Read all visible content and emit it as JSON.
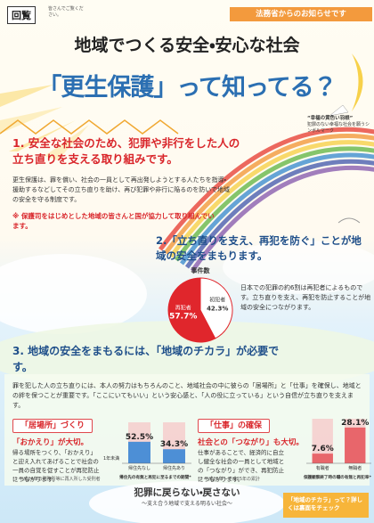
{
  "header": {
    "circular": "回覧",
    "circular_note": "皆さんでご覧ください。",
    "notice": "法務省からのお知らせです",
    "title": "地域でつくる安全・安心な社会",
    "subtitle": "「更生保護」って知ってる？",
    "symbol_name": "“幸福の黄色い羽根”",
    "symbol_desc": "犯罪のない幸福な社会を願うシンボルマーク"
  },
  "section1": {
    "heading": "1. 安全な社会のため、犯罪や非行をした人の立ち直りを支える取り組みです。",
    "body": "更生保護は、罪を償い、社会の一員として再出発しようとする人たちを指導・援助するなどしてその立ち直りを助け、再び犯罪や非行に陥るのを防いで地域の安全を守る制度です。",
    "note": "※ 保護司をはじめとした地域の皆さんと国が協力して取り組んでいます。"
  },
  "section2": {
    "heading": "2.「立ち直りを支え、再犯を防ぐ」ことが地域の安全をまもります。",
    "body": "日本での犯罪の約6割は再犯者によるものです。立ち直りを支え、再犯を防止することが地域の安全につながります。"
  },
  "section3": {
    "heading": "3. 地域の安全をまもるには、「地域のチカラ」が必要です。",
    "body": "罪を犯した人の立ち直りには、本人の努力はもちろんのこと、地域社会の中に彼らの「居場所」と「仕事」を確保し、地域との絆を保つことが重要です。「ここにいてもいい」という安心感と、「人の役に立っている」という自信が立ち直りを支えます。",
    "left": {
      "tag": "「居場所」づくり",
      "subheading": "「おかえり」が大切。",
      "body": "帰る場所をつくり、「おかえり」と迎え入れてあげることで社会の一員の自覚を促すことが再犯防止につながります。",
      "footnote": "*1 平成24年の刑務所等に再入所した受刑者"
    },
    "right": {
      "tag": "「仕事」の確保",
      "subheading": "社会との「つながり」も大切。",
      "body": "仕事があることで、経済的に自立し健全な社会の一員として地域との「つながり」ができ、再犯防止につながります。",
      "footnote": "*2 平成21年〜平成25年の累計"
    }
  },
  "footer": {
    "declaration": "犯罪に戻らない・戻さない",
    "slogan": "〜支え合う地域で支える明るい社会〜",
    "check": "「地域のチカラ」って？詳しくは裏面をチェック"
  },
  "chart_data": [
    {
      "type": "pie",
      "title": "事件数",
      "categories": [
        "再犯者",
        "初犯者"
      ],
      "values": [
        57.7,
        42.3
      ],
      "value_labels": [
        "57.7%",
        "42.3%"
      ],
      "colors": [
        "#e0262c",
        "#ffffff"
      ]
    },
    {
      "type": "bar",
      "title": "帰住先の有無と再犯に至るまでの期間*1",
      "period_label": "1年未満",
      "categories": [
        "帰住先なし",
        "帰住先あり"
      ],
      "values": [
        52.5,
        34.3
      ],
      "value_labels": [
        "52.5%",
        "34.3%"
      ],
      "color": "#4d8fd6",
      "ylim": [
        0,
        100
      ]
    },
    {
      "type": "bar",
      "title": "保護観察終了時の職の有無と再犯率*2",
      "categories": [
        "有職者",
        "無職者"
      ],
      "values": [
        7.6,
        28.1
      ],
      "value_labels": [
        "7.6%",
        "28.1%"
      ],
      "color": "#e8666b",
      "ylim": [
        0,
        35
      ]
    }
  ]
}
